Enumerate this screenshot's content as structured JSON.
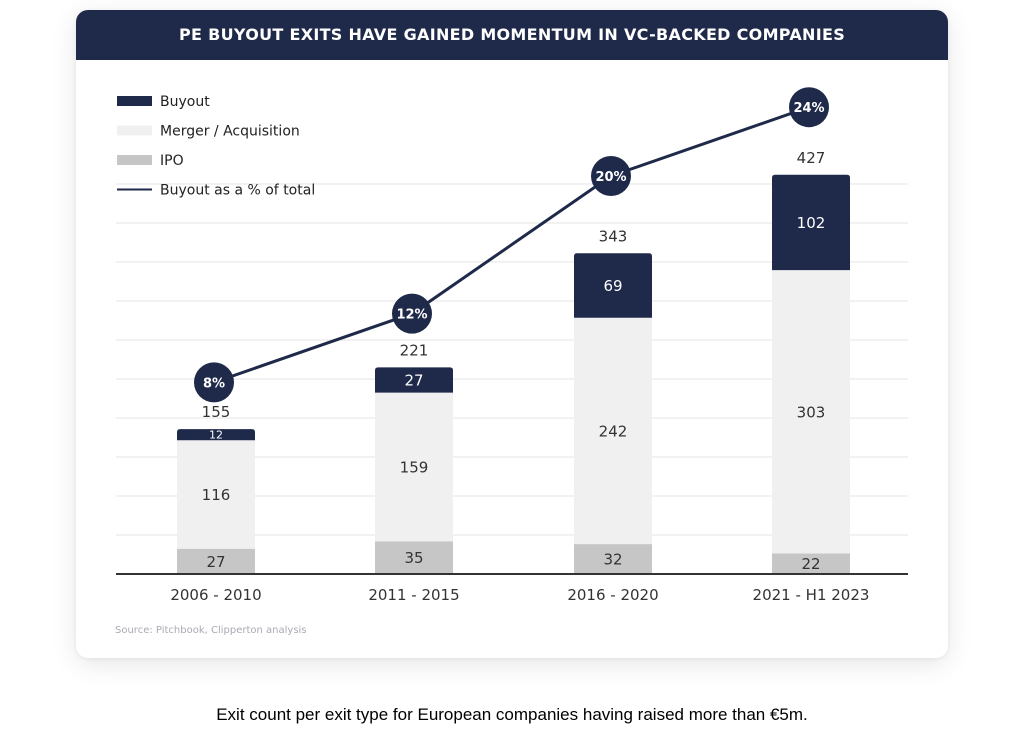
{
  "title": "PE BUYOUT EXITS HAVE GAINED MOMENTUM IN VC-BACKED COMPANIES",
  "source": "Source: Pitchbook, Clipperton analysis",
  "caption": "Exit count per exit type for European companies having raised more than €5m.",
  "colors": {
    "buyout": "#1f2a4a",
    "merger": "#f0f0f1",
    "ipo": "#c6c6c6",
    "line": "#1f2a4a",
    "grid": "#e6e6e6",
    "axis": "#333333"
  },
  "chart_data": {
    "type": "bar",
    "stacked": true,
    "categories": [
      "2006 - 2010",
      "2011 - 2015",
      "2016 - 2020",
      "2021 - H1 2023"
    ],
    "series": [
      {
        "name": "IPO",
        "values": [
          27,
          35,
          32,
          22
        ],
        "color": "#c6c6c6"
      },
      {
        "name": "Merger / Acquisition",
        "values": [
          116,
          159,
          242,
          303
        ],
        "color": "#f0f0f1"
      },
      {
        "name": "Buyout",
        "values": [
          12,
          27,
          69,
          102
        ],
        "color": "#1f2a4a"
      }
    ],
    "totals": [
      155,
      221,
      343,
      427
    ],
    "line": {
      "name": "Buyout as a % of total",
      "values": [
        8,
        12,
        20,
        24
      ],
      "labels": [
        "8%",
        "12%",
        "20%",
        "24%"
      ]
    },
    "legend": [
      "Buyout",
      "Merger / Acquisition",
      "IPO",
      "Buyout as a % of total"
    ],
    "legend_position": "top-left",
    "ylim": [
      0,
      510
    ],
    "grid": true
  }
}
